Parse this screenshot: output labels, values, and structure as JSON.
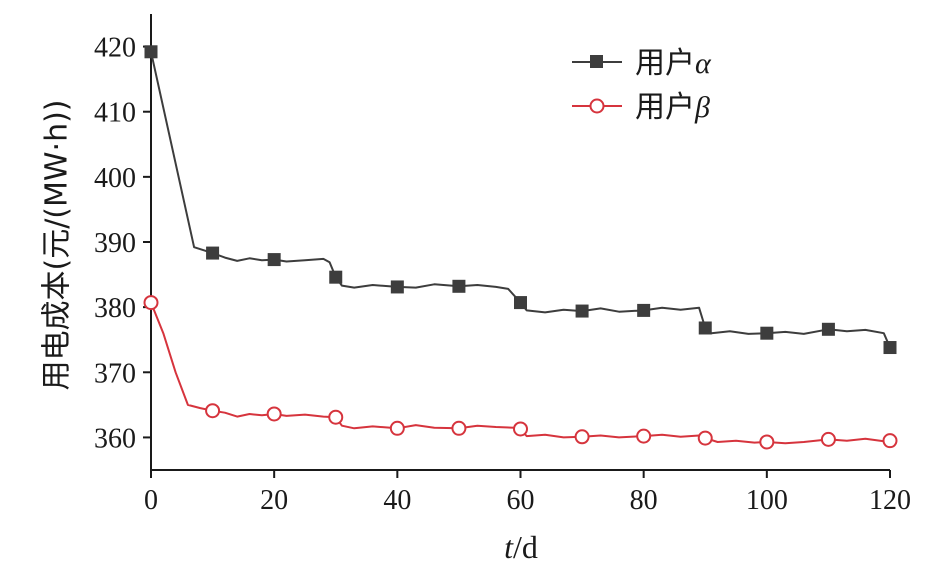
{
  "chart_data": {
    "type": "line",
    "xlabel": {
      "var": "t",
      "unit": "/d"
    },
    "ylabel": "用电成本(元/(MW·h))",
    "xlim": [
      0,
      120
    ],
    "ylim": [
      355,
      425
    ],
    "xticks": [
      0,
      20,
      40,
      60,
      80,
      100,
      120
    ],
    "yticks": [
      360,
      370,
      380,
      390,
      400,
      410,
      420
    ],
    "grid": false,
    "legend_position": "top-right",
    "series": [
      {
        "name": "用户α",
        "name_prefix": "用户",
        "name_symbol": "α",
        "color": "#3d3d3d",
        "marker": "filled-square",
        "x": [
          0,
          7,
          10,
          12,
          14,
          16,
          18,
          20,
          22,
          25,
          28,
          29,
          30,
          31,
          33,
          36,
          40,
          43,
          46,
          50,
          53,
          56,
          58,
          60,
          61,
          64,
          67,
          70,
          73,
          76,
          80,
          83,
          86,
          89,
          90,
          91,
          94,
          97,
          100,
          103,
          106,
          110,
          113,
          116,
          119,
          120
        ],
        "y": [
          419.2,
          389.2,
          388.3,
          387.6,
          387.1,
          387.5,
          387.2,
          387.3,
          387.0,
          387.2,
          387.4,
          386.9,
          384.6,
          383.3,
          383.0,
          383.4,
          383.1,
          383.0,
          383.5,
          383.2,
          383.4,
          383.1,
          382.8,
          380.7,
          379.5,
          379.2,
          379.6,
          379.4,
          379.8,
          379.3,
          379.5,
          379.9,
          379.6,
          379.9,
          376.8,
          376.0,
          376.3,
          375.9,
          376.0,
          376.2,
          375.9,
          376.6,
          376.3,
          376.5,
          376.0,
          373.8
        ],
        "marker_x": [
          0,
          10,
          20,
          30,
          40,
          50,
          60,
          70,
          80,
          90,
          100,
          110,
          120
        ],
        "marker_y": [
          419.2,
          388.3,
          387.3,
          384.6,
          383.1,
          383.2,
          380.7,
          379.4,
          379.5,
          376.8,
          376.0,
          376.6,
          373.8
        ]
      },
      {
        "name": "用户β",
        "name_prefix": "用户",
        "name_symbol": "β",
        "color": "#d6343d",
        "marker": "open-circle",
        "x": [
          0,
          2,
          4,
          6,
          8,
          10,
          12,
          14,
          16,
          18,
          20,
          22,
          25,
          28,
          30,
          31,
          33,
          36,
          40,
          43,
          46,
          50,
          53,
          56,
          59,
          60,
          61,
          64,
          67,
          70,
          73,
          76,
          80,
          83,
          86,
          89,
          90,
          92,
          95,
          98,
          100,
          103,
          106,
          110,
          113,
          116,
          119,
          120
        ],
        "y": [
          380.7,
          376.0,
          370.0,
          365.0,
          364.5,
          364.1,
          363.8,
          363.2,
          363.6,
          363.4,
          363.6,
          363.3,
          363.5,
          363.2,
          363.1,
          361.8,
          361.4,
          361.7,
          361.4,
          361.9,
          361.5,
          361.4,
          361.8,
          361.6,
          361.5,
          361.3,
          360.2,
          360.4,
          360.0,
          360.1,
          360.3,
          360.0,
          360.2,
          360.4,
          360.1,
          360.3,
          359.9,
          359.3,
          359.5,
          359.2,
          359.3,
          359.1,
          359.3,
          359.7,
          359.5,
          359.8,
          359.4,
          359.5
        ],
        "marker_x": [
          0,
          10,
          20,
          30,
          40,
          50,
          60,
          70,
          80,
          90,
          100,
          110,
          120
        ],
        "marker_y": [
          380.7,
          364.1,
          363.6,
          363.1,
          361.4,
          361.4,
          361.3,
          360.1,
          360.2,
          359.9,
          359.3,
          359.7,
          359.5
        ]
      }
    ]
  }
}
